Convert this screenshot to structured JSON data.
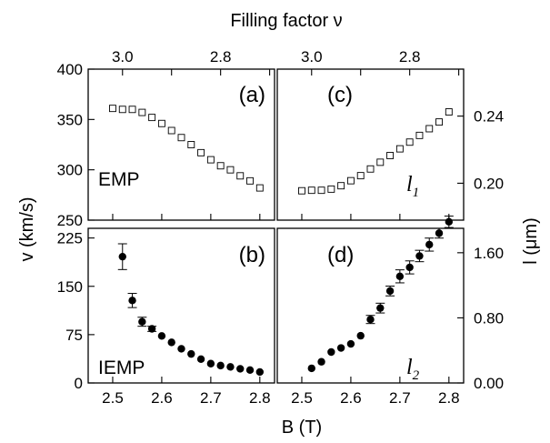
{
  "figure": {
    "top_axis_title": "Filling factor ν",
    "bottom_axis_title": "B (T)",
    "left_axis_title": "v (km/s)",
    "right_axis_title": "l (μm)"
  },
  "chart_data": [
    {
      "id": "a",
      "type": "scatter",
      "panel_label": "(a)",
      "annotation": "EMP",
      "marker": "open-square",
      "xlim": [
        2.45,
        2.83
      ],
      "ylim": [
        250,
        400
      ],
      "x_ticks": [
        2.5,
        2.6,
        2.7,
        2.8
      ],
      "y_ticks": [
        250,
        300,
        350,
        400
      ],
      "y_tick_labels": [
        "250",
        "300",
        "350",
        "400"
      ],
      "series": [
        {
          "x": [
            2.5,
            2.52,
            2.54,
            2.56,
            2.58,
            2.6,
            2.62,
            2.64,
            2.66,
            2.68,
            2.7,
            2.72,
            2.74,
            2.76,
            2.78,
            2.8
          ],
          "y": [
            361,
            360,
            360,
            357,
            352,
            346,
            339,
            332,
            325,
            317,
            310,
            304,
            300,
            294,
            289,
            282
          ]
        }
      ]
    },
    {
      "id": "c",
      "type": "scatter",
      "panel_label": "(c)",
      "annotation": "l",
      "annotation_sub": "1",
      "marker": "open-square",
      "xlim": [
        2.45,
        2.83
      ],
      "ylim": [
        0.178,
        0.268
      ],
      "x_ticks": [
        2.5,
        2.6,
        2.7,
        2.8
      ],
      "y_ticks": [
        0.2,
        0.24
      ],
      "y_tick_labels": [
        "0.20",
        "0.24"
      ],
      "series": [
        {
          "x": [
            2.5,
            2.52,
            2.54,
            2.56,
            2.58,
            2.6,
            2.62,
            2.64,
            2.66,
            2.68,
            2.7,
            2.72,
            2.74,
            2.76,
            2.78,
            2.8
          ],
          "y": [
            0.1955,
            0.1958,
            0.1958,
            0.1965,
            0.1985,
            0.2015,
            0.2045,
            0.2085,
            0.2125,
            0.2165,
            0.2205,
            0.2245,
            0.2285,
            0.2325,
            0.2365,
            0.2425
          ]
        }
      ]
    },
    {
      "id": "b",
      "type": "scatter",
      "panel_label": "(b)",
      "annotation": "IEMP",
      "marker": "filled-circle",
      "xlim": [
        2.45,
        2.83
      ],
      "ylim": [
        0,
        240
      ],
      "x_ticks": [
        2.5,
        2.6,
        2.7,
        2.8
      ],
      "x_tick_labels": [
        "2.5",
        "2.6",
        "2.7",
        "2.8"
      ],
      "y_ticks": [
        0,
        75,
        150,
        225
      ],
      "y_tick_labels": [
        "0",
        "75",
        "150",
        "225"
      ],
      "series": [
        {
          "x": [
            2.52,
            2.54,
            2.56,
            2.58,
            2.6,
            2.62,
            2.64,
            2.66,
            2.68,
            2.7,
            2.72,
            2.74,
            2.76,
            2.78,
            2.8
          ],
          "y": [
            196,
            128,
            95,
            84,
            73,
            63,
            53,
            45,
            37,
            30,
            27,
            25,
            22,
            20,
            17
          ],
          "err": [
            20,
            11,
            7,
            4,
            0,
            0,
            0,
            0,
            0,
            0,
            0,
            0,
            0,
            0,
            0
          ]
        }
      ]
    },
    {
      "id": "d",
      "type": "scatter",
      "panel_label": "(d)",
      "annotation": "l",
      "annotation_sub": "2",
      "marker": "filled-circle",
      "xlim": [
        2.45,
        2.83
      ],
      "ylim": [
        0,
        1.9
      ],
      "x_ticks": [
        2.5,
        2.6,
        2.7,
        2.8
      ],
      "x_tick_labels": [
        "2.5",
        "2.6",
        "2.7",
        "2.8"
      ],
      "y_ticks": [
        0.0,
        0.8,
        1.6
      ],
      "y_tick_labels": [
        "0.00",
        "0.80",
        "1.60"
      ],
      "series": [
        {
          "x": [
            2.52,
            2.54,
            2.56,
            2.58,
            2.6,
            2.62,
            2.64,
            2.66,
            2.68,
            2.7,
            2.72,
            2.74,
            2.76,
            2.78,
            2.8
          ],
          "y": [
            0.18,
            0.26,
            0.38,
            0.43,
            0.48,
            0.58,
            0.78,
            0.92,
            1.13,
            1.31,
            1.42,
            1.56,
            1.7,
            1.84,
            1.98
          ],
          "err": [
            0,
            0,
            0,
            0,
            0,
            0,
            0.05,
            0.06,
            0.06,
            0.08,
            0.08,
            0.07,
            0.08,
            0.06,
            0.07
          ]
        }
      ]
    }
  ],
  "top_axis": {
    "ticks_B": [
      2.52,
      2.62,
      2.72,
      2.82
    ],
    "labels": [
      "3.0",
      "",
      "2.8",
      ""
    ]
  }
}
